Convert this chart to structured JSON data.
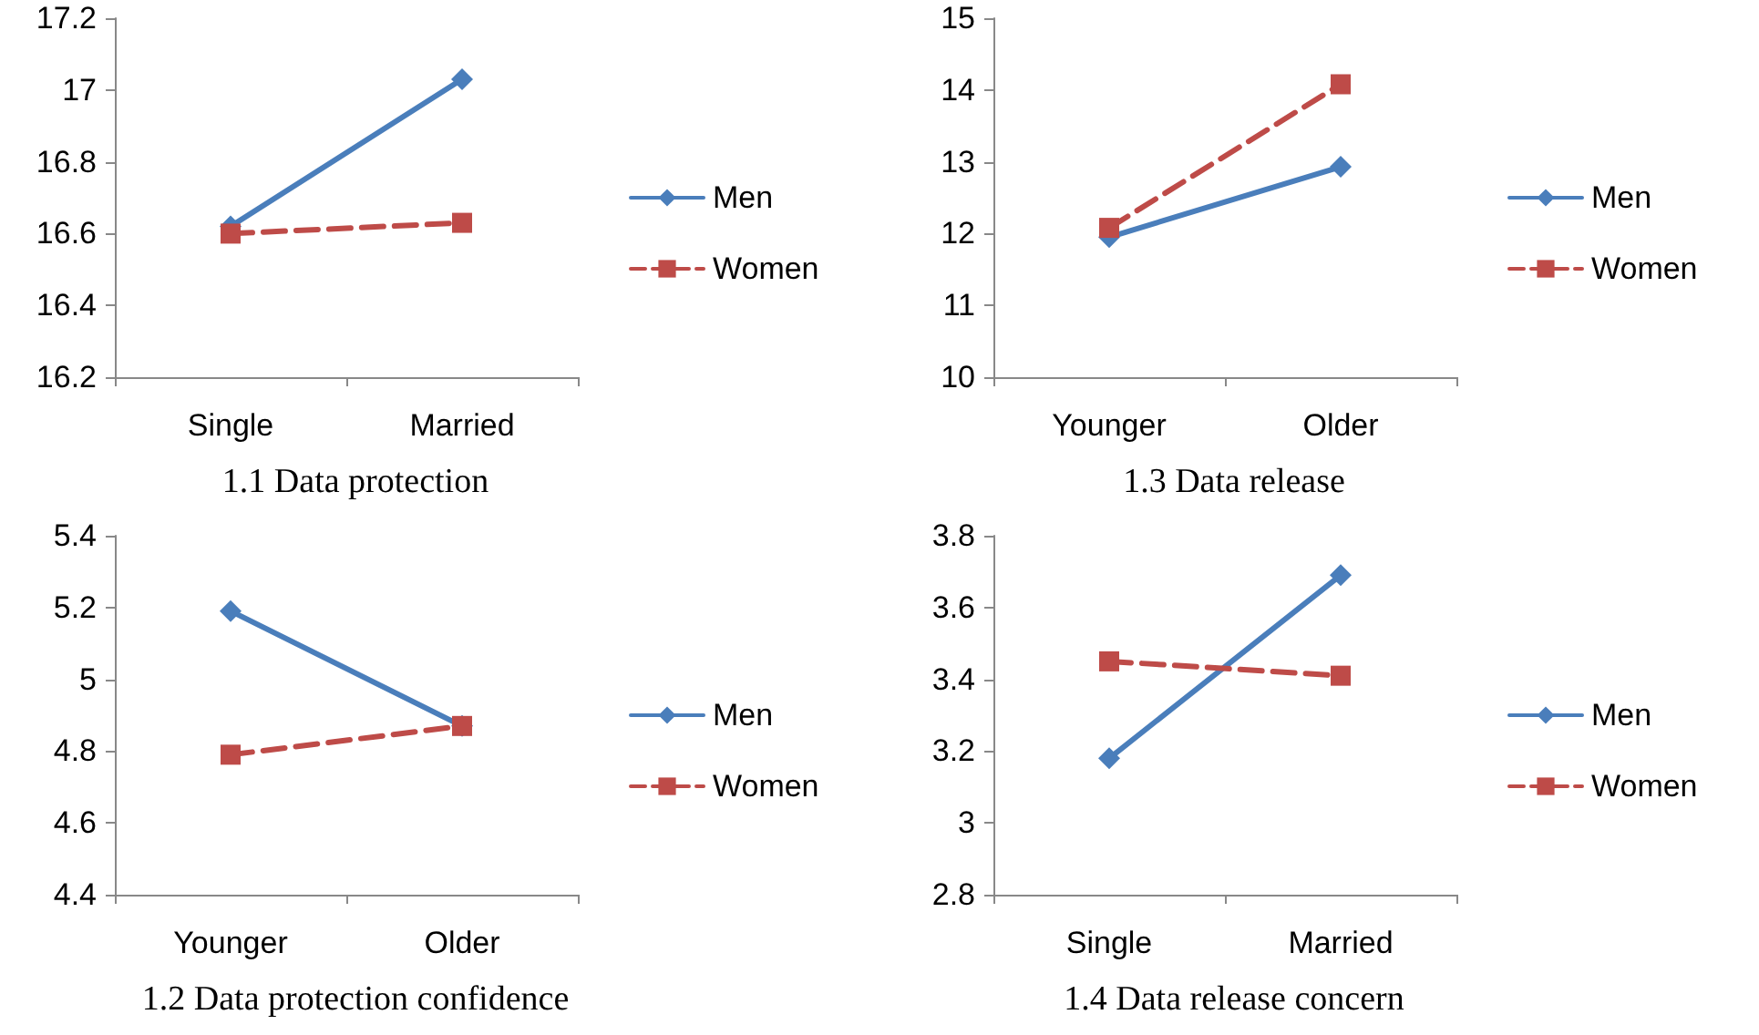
{
  "chart_data": [
    {
      "type": "line",
      "title": "1.1 Data protection",
      "categories": [
        "Single",
        "Married"
      ],
      "series": [
        {
          "name": "Men",
          "color": "#4a7ebb",
          "values": [
            16.62,
            17.03
          ],
          "marker": "diamond",
          "line_style": "solid"
        },
        {
          "name": "Women",
          "color": "#be4b48",
          "values": [
            16.6,
            16.63
          ],
          "marker": "square",
          "line_style": "dashed"
        }
      ],
      "ylim": [
        16.2,
        17.2
      ],
      "yticks": [
        16.2,
        16.4,
        16.6,
        16.8,
        17,
        17.2
      ],
      "grid": false,
      "legend": "right"
    },
    {
      "type": "line",
      "title": "1.3 Data release",
      "categories": [
        "Younger",
        "Older"
      ],
      "series": [
        {
          "name": "Men",
          "color": "#4a7ebb",
          "values": [
            11.95,
            12.93
          ],
          "marker": "diamond",
          "line_style": "solid"
        },
        {
          "name": "Women",
          "color": "#be4b48",
          "values": [
            12.08,
            14.08
          ],
          "marker": "square",
          "line_style": "dashed"
        }
      ],
      "ylim": [
        10,
        15
      ],
      "yticks": [
        10,
        11,
        12,
        13,
        14,
        15
      ],
      "grid": false,
      "legend": "right"
    },
    {
      "type": "line",
      "title": "1.2 Data protection confidence",
      "categories": [
        "Younger",
        "Older"
      ],
      "series": [
        {
          "name": "Men",
          "color": "#4a7ebb",
          "values": [
            5.19,
            4.87
          ],
          "marker": "diamond",
          "line_style": "solid"
        },
        {
          "name": "Women",
          "color": "#be4b48",
          "values": [
            4.79,
            4.87
          ],
          "marker": "square",
          "line_style": "dashed"
        }
      ],
      "ylim": [
        4.4,
        5.4
      ],
      "yticks": [
        4.4,
        4.6,
        4.8,
        5,
        5.2,
        5.4
      ],
      "grid": false,
      "legend": "right"
    },
    {
      "type": "line",
      "title": "1.4 Data release concern",
      "categories": [
        "Single",
        "Married"
      ],
      "series": [
        {
          "name": "Men",
          "color": "#4a7ebb",
          "values": [
            3.18,
            3.69
          ],
          "marker": "diamond",
          "line_style": "solid"
        },
        {
          "name": "Women",
          "color": "#be4b48",
          "values": [
            3.45,
            3.41
          ],
          "marker": "square",
          "line_style": "dashed"
        }
      ],
      "ylim": [
        2.8,
        3.8
      ],
      "yticks": [
        2.8,
        3,
        3.2,
        3.4,
        3.6,
        3.8
      ],
      "grid": false,
      "legend": "right"
    }
  ]
}
